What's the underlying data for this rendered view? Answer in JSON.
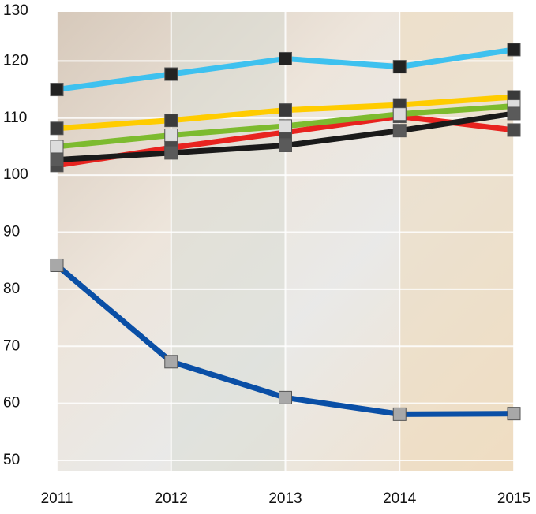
{
  "chart_data": {
    "type": "line",
    "x": [
      2011,
      2012,
      2013,
      2014,
      2015
    ],
    "xlim": [
      2011,
      2015
    ],
    "ylim": [
      50,
      130
    ],
    "yticks": [
      50,
      60,
      70,
      80,
      90,
      100,
      110,
      120,
      130
    ],
    "grid": true,
    "series": [
      {
        "color": "#3ec1ef",
        "marker_color": "#222222",
        "values": [
          115.0,
          117.7,
          120.4,
          119.0,
          122.0
        ]
      },
      {
        "color": "#ffcc00",
        "marker_color": "#3a3a3a",
        "values": [
          108.2,
          109.6,
          111.4,
          112.3,
          113.7
        ]
      },
      {
        "color": "#e8231f",
        "marker_color": "#4a4a4a",
        "values": [
          101.7,
          104.8,
          107.5,
          110.3,
          107.9
        ]
      },
      {
        "color": "#7dbb2f",
        "marker_color": "#dcdcdc",
        "values": [
          105.0,
          107.0,
          108.6,
          110.7,
          112.1
        ]
      },
      {
        "color": "#1a1a1a",
        "marker_color": "#5a5a5a",
        "values": [
          102.7,
          103.9,
          105.2,
          107.8,
          110.8
        ]
      },
      {
        "color": "#0a4fa6",
        "marker_color": "#a8a8a8",
        "values": [
          84.2,
          67.3,
          61.0,
          58.1,
          58.2
        ]
      }
    ]
  }
}
